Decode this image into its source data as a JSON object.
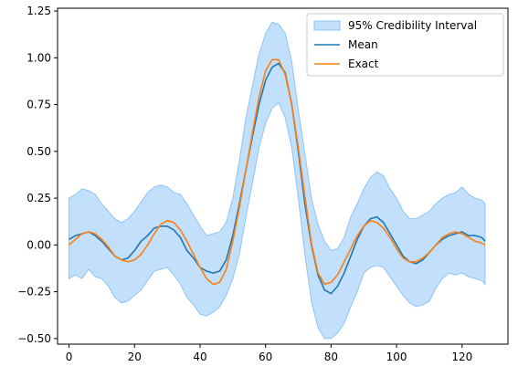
{
  "chart_data": {
    "type": "line",
    "xlim": [
      -3.5,
      134
    ],
    "ylim": [
      -0.53,
      1.265
    ],
    "x_ticks": [
      0,
      20,
      40,
      60,
      80,
      100,
      120
    ],
    "x_tick_labels": [
      "0",
      "20",
      "40",
      "60",
      "80",
      "100",
      "120"
    ],
    "y_ticks": [
      -0.5,
      -0.25,
      0.0,
      0.25,
      0.5,
      0.75,
      1.0,
      1.25
    ],
    "y_tick_labels": [
      "−0.50",
      "−0.25",
      "0.00",
      "0.25",
      "0.50",
      "0.75",
      "1.00",
      "1.25"
    ],
    "grid": false,
    "legend_position": "top-right",
    "series": [
      {
        "name": "Mean",
        "color": "#1f77b4",
        "x": [
          0,
          2,
          4,
          6,
          8,
          10,
          12,
          14,
          16,
          18,
          20,
          22,
          24,
          26,
          28,
          30,
          32,
          34,
          36,
          38,
          40,
          42,
          44,
          46,
          48,
          50,
          52,
          54,
          56,
          58,
          60,
          62,
          64,
          66,
          68,
          70,
          72,
          74,
          76,
          78,
          80,
          82,
          84,
          86,
          88,
          90,
          92,
          94,
          96,
          98,
          100,
          102,
          104,
          106,
          108,
          110,
          112,
          114,
          116,
          118,
          120,
          122,
          124,
          126,
          127
        ],
        "y": [
          0.03,
          0.05,
          0.06,
          0.07,
          0.05,
          0.02,
          -0.02,
          -0.06,
          -0.08,
          -0.07,
          -0.03,
          0.02,
          0.05,
          0.09,
          0.1,
          0.1,
          0.08,
          0.04,
          -0.03,
          -0.07,
          -0.12,
          -0.14,
          -0.15,
          -0.14,
          -0.08,
          0.05,
          0.22,
          0.4,
          0.58,
          0.75,
          0.88,
          0.95,
          0.97,
          0.92,
          0.75,
          0.5,
          0.22,
          0.0,
          -0.16,
          -0.24,
          -0.26,
          -0.22,
          -0.15,
          -0.06,
          0.03,
          0.1,
          0.14,
          0.15,
          0.12,
          0.06,
          0.0,
          -0.06,
          -0.09,
          -0.1,
          -0.08,
          -0.04,
          0.0,
          0.03,
          0.05,
          0.06,
          0.07,
          0.05,
          0.05,
          0.04,
          0.02
        ]
      },
      {
        "name": "Exact",
        "color": "#ff7f0e",
        "x": [
          0,
          2,
          4,
          6,
          8,
          10,
          12,
          14,
          16,
          18,
          20,
          22,
          24,
          26,
          28,
          30,
          32,
          34,
          36,
          38,
          40,
          42,
          44,
          46,
          48,
          50,
          52,
          54,
          56,
          58,
          60,
          62,
          64,
          66,
          68,
          70,
          72,
          74,
          76,
          78,
          80,
          82,
          84,
          86,
          88,
          90,
          92,
          94,
          96,
          98,
          100,
          102,
          104,
          106,
          108,
          110,
          112,
          114,
          116,
          118,
          120,
          122,
          124,
          126,
          127
        ],
        "y": [
          0.0,
          0.03,
          0.06,
          0.07,
          0.06,
          0.03,
          -0.01,
          -0.06,
          -0.08,
          -0.09,
          -0.08,
          -0.05,
          0.0,
          0.06,
          0.11,
          0.13,
          0.12,
          0.08,
          0.02,
          -0.05,
          -0.12,
          -0.18,
          -0.21,
          -0.2,
          -0.13,
          0.02,
          0.2,
          0.4,
          0.6,
          0.79,
          0.93,
          0.99,
          0.99,
          0.91,
          0.75,
          0.52,
          0.26,
          0.01,
          -0.15,
          -0.21,
          -0.2,
          -0.16,
          -0.09,
          -0.02,
          0.05,
          0.1,
          0.13,
          0.12,
          0.09,
          0.04,
          -0.02,
          -0.07,
          -0.09,
          -0.09,
          -0.07,
          -0.04,
          0.0,
          0.04,
          0.06,
          0.07,
          0.06,
          0.04,
          0.02,
          0.01,
          0.0
        ]
      }
    ],
    "band": {
      "name": "95% Credibility Interval",
      "color": "#90c4f7",
      "x": [
        0,
        2,
        4,
        6,
        8,
        10,
        12,
        14,
        16,
        18,
        20,
        22,
        24,
        26,
        28,
        30,
        32,
        34,
        36,
        38,
        40,
        42,
        44,
        46,
        48,
        50,
        52,
        54,
        56,
        58,
        60,
        62,
        64,
        66,
        68,
        70,
        72,
        74,
        76,
        78,
        80,
        82,
        84,
        86,
        88,
        90,
        92,
        94,
        96,
        98,
        100,
        102,
        104,
        106,
        108,
        110,
        112,
        114,
        116,
        118,
        120,
        122,
        124,
        126,
        127
      ],
      "lower": [
        -0.18,
        -0.16,
        -0.18,
        -0.13,
        -0.17,
        -0.18,
        -0.22,
        -0.28,
        -0.31,
        -0.3,
        -0.27,
        -0.24,
        -0.19,
        -0.14,
        -0.13,
        -0.12,
        -0.16,
        -0.21,
        -0.28,
        -0.32,
        -0.37,
        -0.38,
        -0.36,
        -0.33,
        -0.27,
        -0.18,
        -0.05,
        0.15,
        0.33,
        0.52,
        0.65,
        0.73,
        0.76,
        0.68,
        0.52,
        0.25,
        -0.05,
        -0.3,
        -0.44,
        -0.5,
        -0.5,
        -0.47,
        -0.42,
        -0.33,
        -0.25,
        -0.15,
        -0.12,
        -0.11,
        -0.12,
        -0.17,
        -0.22,
        -0.27,
        -0.31,
        -0.33,
        -0.32,
        -0.3,
        -0.23,
        -0.18,
        -0.15,
        -0.16,
        -0.15,
        -0.17,
        -0.18,
        -0.19,
        -0.21
      ],
      "upper": [
        0.25,
        0.27,
        0.3,
        0.29,
        0.27,
        0.22,
        0.18,
        0.14,
        0.12,
        0.14,
        0.18,
        0.23,
        0.28,
        0.31,
        0.32,
        0.31,
        0.28,
        0.27,
        0.22,
        0.16,
        0.1,
        0.05,
        0.06,
        0.07,
        0.12,
        0.25,
        0.45,
        0.68,
        0.85,
        1.02,
        1.13,
        1.19,
        1.18,
        1.13,
        0.98,
        0.72,
        0.49,
        0.25,
        0.11,
        0.02,
        -0.03,
        -0.02,
        0.04,
        0.15,
        0.22,
        0.3,
        0.36,
        0.39,
        0.37,
        0.3,
        0.25,
        0.18,
        0.14,
        0.14,
        0.16,
        0.18,
        0.22,
        0.25,
        0.27,
        0.28,
        0.31,
        0.27,
        0.25,
        0.24,
        0.22
      ]
    }
  }
}
